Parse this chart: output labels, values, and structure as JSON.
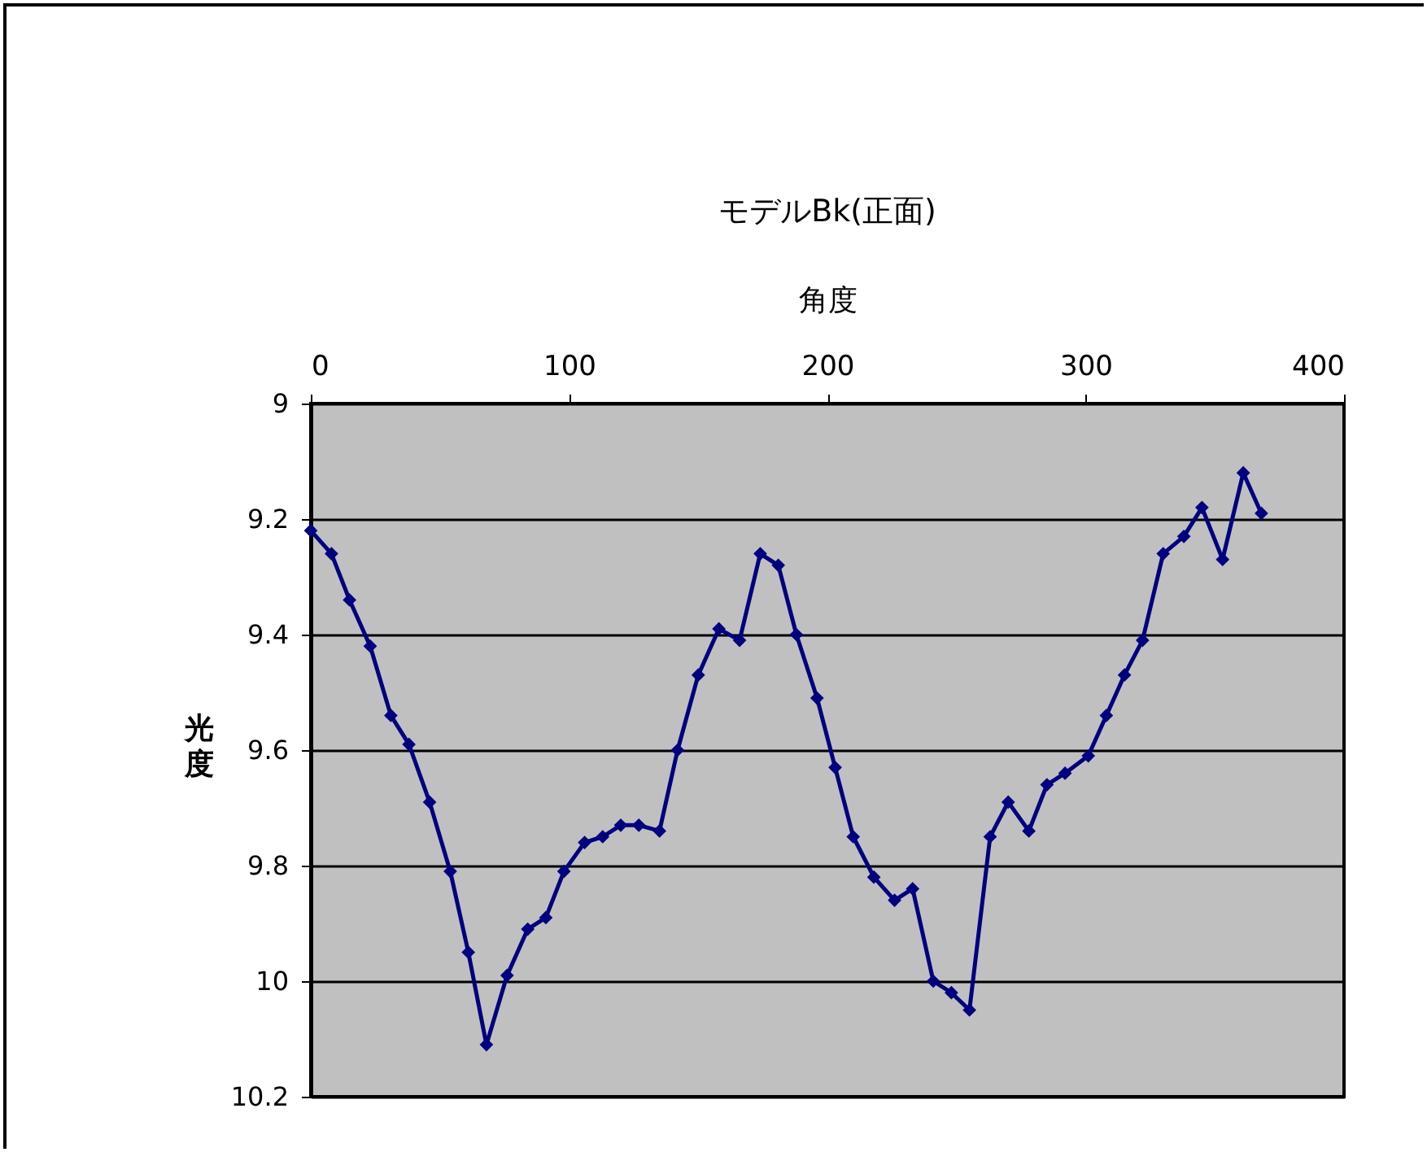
{
  "chart_data": {
    "type": "line",
    "title": "モデルBk(正面)",
    "xlabel": "角度",
    "ylabel": "光度",
    "x": [
      0,
      8,
      15,
      23,
      31,
      38,
      46,
      54,
      61,
      68,
      76,
      84,
      91,
      98,
      106,
      113,
      120,
      127,
      135,
      142,
      150,
      158,
      166,
      174,
      181,
      188,
      196,
      203,
      210,
      218,
      226,
      233,
      241,
      248,
      255,
      263,
      270,
      278,
      285,
      292,
      301,
      308,
      315,
      322,
      330,
      338,
      345,
      353,
      361,
      368
    ],
    "series": [
      {
        "color": "#000080",
        "values": [
          9.22,
          9.26,
          9.34,
          9.42,
          9.54,
          9.59,
          9.69,
          9.81,
          9.95,
          10.11,
          9.99,
          9.91,
          9.89,
          9.81,
          9.76,
          9.75,
          9.73,
          9.73,
          9.74,
          9.6,
          9.47,
          9.39,
          9.41,
          9.26,
          9.28,
          9.4,
          9.51,
          9.63,
          9.75,
          9.82,
          9.86,
          9.84,
          10.0,
          10.02,
          10.05,
          9.75,
          9.69,
          9.74,
          9.66,
          9.64,
          9.61,
          9.54,
          9.47,
          9.41,
          9.26,
          9.23,
          9.18,
          9.27,
          9.12,
          9.19
        ]
      }
    ],
    "xlim": [
      0,
      400
    ],
    "xticks": [
      0,
      100,
      200,
      300,
      400
    ],
    "ylim": [
      10.2,
      9
    ],
    "yticks": [
      9,
      9.2,
      9.4,
      9.6,
      9.8,
      10,
      10.2
    ],
    "grid": "y",
    "marker": "diamond",
    "line_style": "solid",
    "legend": false
  }
}
